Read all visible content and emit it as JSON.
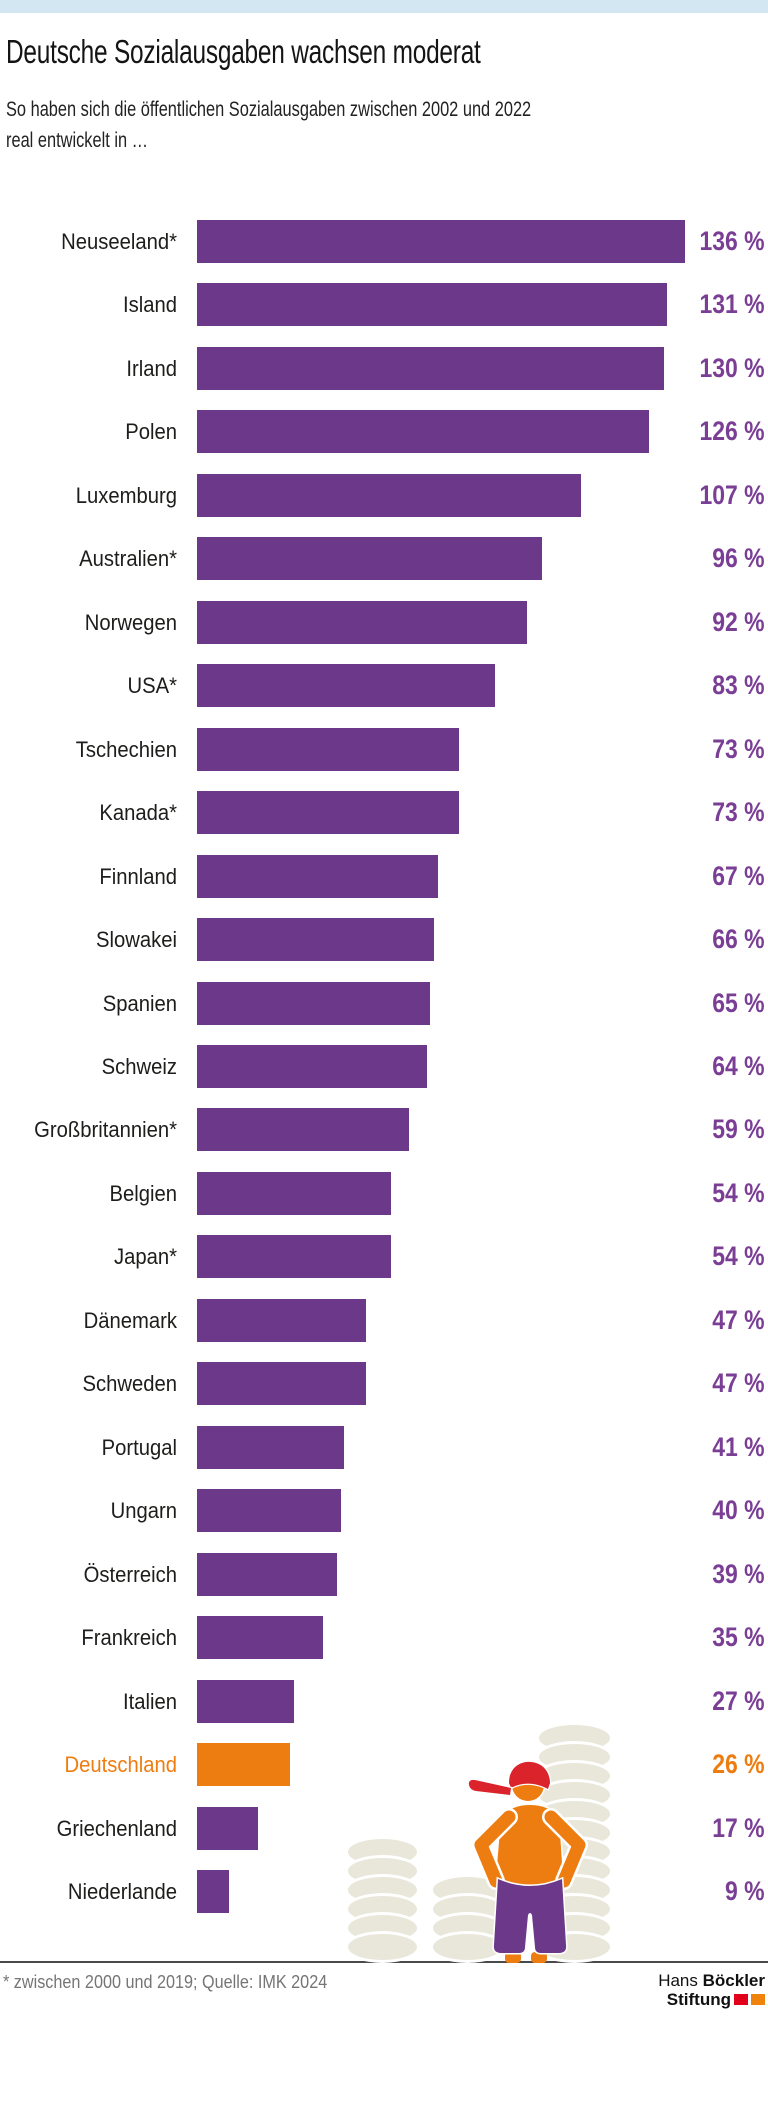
{
  "page": {
    "title": "Deutsche Sozialausgaben wachsen moderat",
    "subtitle_line1": "So haben sich die öffentlichen Sozialausgaben zwischen 2002 und 2022",
    "subtitle_line2": "real entwickelt in …"
  },
  "chart_data": {
    "type": "bar",
    "orientation": "horizontal",
    "unit": "%",
    "categories": [
      "Neuseeland*",
      "Island",
      "Irland",
      "Polen",
      "Luxemburg",
      "Australien*",
      "Norwegen",
      "USA*",
      "Tschechien",
      "Kanada*",
      "Finnland",
      "Slowakei",
      "Spanien",
      "Schweiz",
      "Großbritannien*",
      "Belgien",
      "Japan*",
      "Dänemark",
      "Schweden",
      "Portugal",
      "Ungarn",
      "Österreich",
      "Frankreich",
      "Italien",
      "Deutschland",
      "Griechenland",
      "Niederlande"
    ],
    "values": [
      136,
      131,
      130,
      126,
      107,
      96,
      92,
      83,
      73,
      73,
      67,
      66,
      65,
      64,
      59,
      54,
      54,
      47,
      47,
      41,
      40,
      39,
      35,
      27,
      26,
      17,
      9
    ],
    "value_suffix": " %",
    "highlight_category": "Deutschland",
    "xlim": [
      0,
      136
    ],
    "grid": false,
    "legend": false
  },
  "illustration": {
    "coin_stacks": [
      {
        "coins": 6
      },
      {
        "coins": 4
      },
      {
        "coins": 12
      }
    ]
  },
  "footer": {
    "note": "* zwischen 2000 und 2019; Quelle: IMK 2024",
    "logo_line1_regular": "Hans",
    "logo_line1_bold": "Böckler",
    "logo_line2_bold": "Stiftung"
  },
  "theme": {
    "top_band": "#d2e7f2",
    "bar_purple": "#6c3889",
    "value_text_purple": "#7a3e95",
    "highlight_orange": "#ee7d11",
    "cap_red": "#da232b",
    "coin_beige": "#e9e7da",
    "note_gray": "#757575",
    "logo_red": "#e2001a",
    "logo_orange": "#f0830c"
  }
}
